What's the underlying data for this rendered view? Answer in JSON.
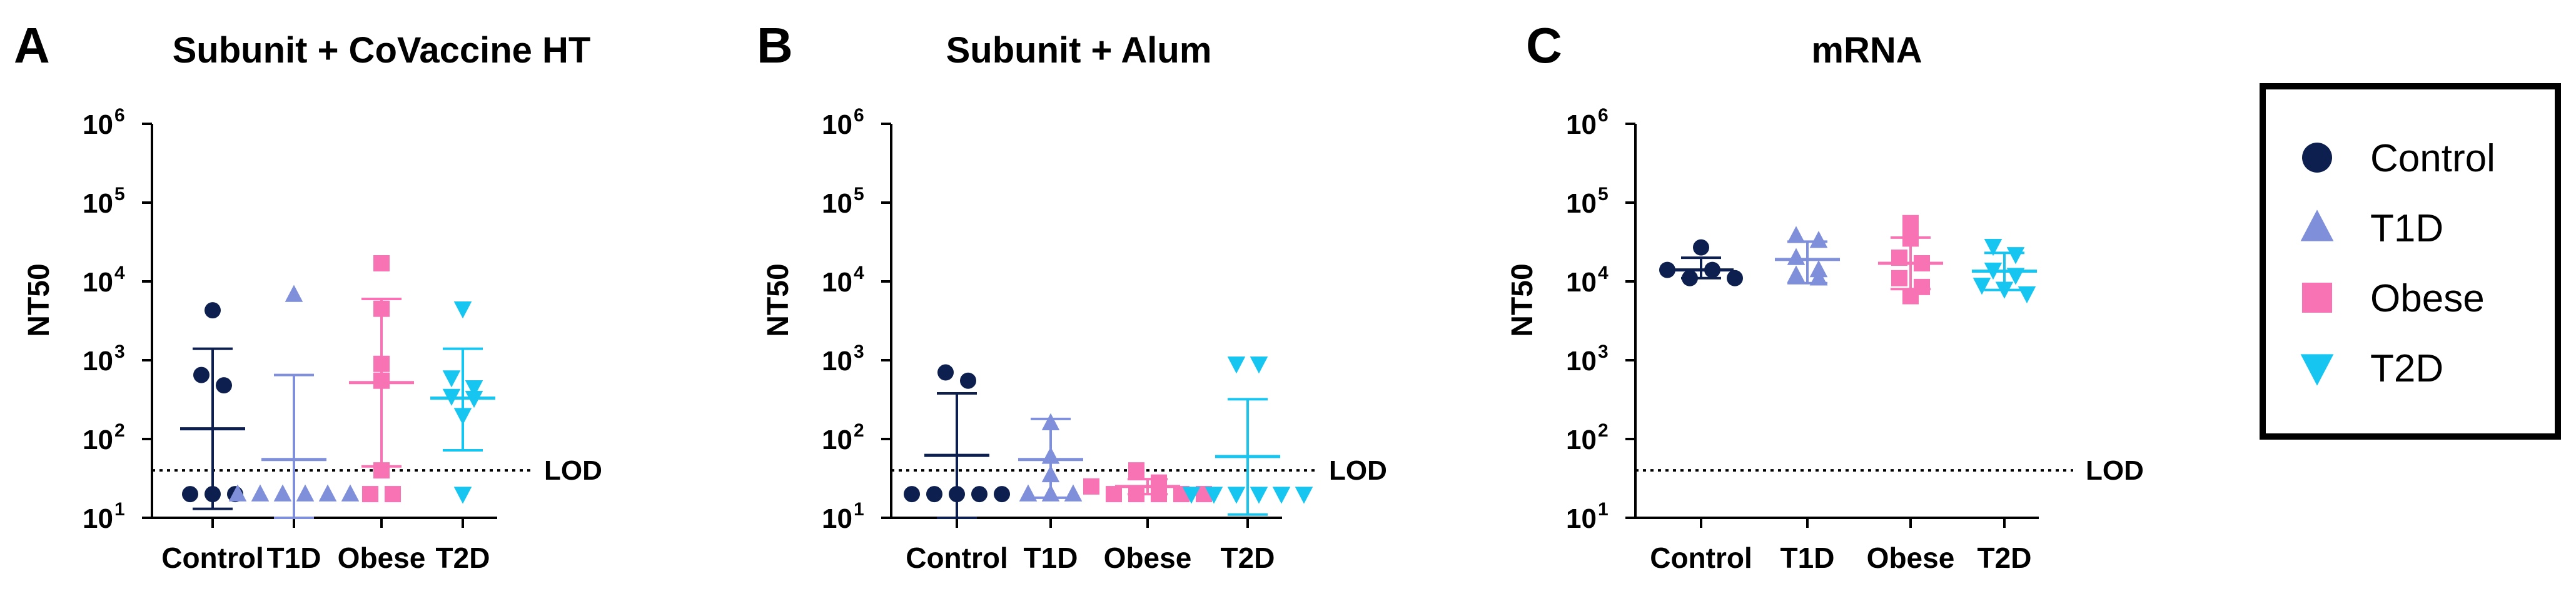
{
  "chart_data": [
    {
      "panel_letter": "A",
      "type": "scatter",
      "title": "Subunit + CoVaccine HT",
      "ylabel": "NT50",
      "yscale": "log",
      "ylim": [
        10,
        1000000
      ],
      "yticks": [
        1,
        2,
        3,
        4,
        5,
        6
      ],
      "categories": [
        "Control",
        "T1D",
        "Obese",
        "T2D"
      ],
      "lod": {
        "value": 40,
        "label": "LOD"
      },
      "series": [
        {
          "name": "Control",
          "points": [
            4300,
            650,
            480,
            20,
            20,
            20
          ],
          "mean": 135,
          "err_low": 13,
          "err_high": 1400
        },
        {
          "name": "T1D",
          "points": [
            6800,
            20,
            20,
            20,
            20,
            20,
            20
          ],
          "mean": 55,
          "err_low": 10,
          "err_high": 650
        },
        {
          "name": "Obese",
          "points": [
            17000,
            4500,
            900,
            550,
            20,
            20,
            40
          ],
          "mean": 520,
          "err_low": 45,
          "err_high": 6000
        },
        {
          "name": "T2D",
          "points": [
            4500,
            600,
            450,
            350,
            330,
            200,
            20
          ],
          "mean": 330,
          "err_low": 72,
          "err_high": 1400
        }
      ]
    },
    {
      "panel_letter": "B",
      "type": "scatter",
      "title": "Subunit + Alum",
      "ylabel": "NT50",
      "yscale": "log",
      "ylim": [
        10,
        1000000
      ],
      "yticks": [
        1,
        2,
        3,
        4,
        5,
        6
      ],
      "categories": [
        "Control",
        "T1D",
        "Obese",
        "T2D"
      ],
      "lod": {
        "value": 40,
        "label": "LOD"
      },
      "series": [
        {
          "name": "Control",
          "points": [
            700,
            550,
            20,
            20,
            20,
            20,
            20
          ],
          "mean": 62,
          "err_low": 10,
          "err_high": 380
        },
        {
          "name": "T1D",
          "points": [
            160,
            60,
            35,
            20,
            20,
            20
          ],
          "mean": 55,
          "err_low": 18,
          "err_high": 180
        },
        {
          "name": "Obese",
          "points": [
            40,
            28,
            25,
            20,
            20,
            20,
            20,
            20
          ],
          "mean": 25,
          "err_low": 20,
          "err_high": 31
        },
        {
          "name": "T2D",
          "points": [
            900,
            900,
            20,
            20,
            20,
            20,
            20,
            20
          ],
          "mean": 60,
          "err_low": 11,
          "err_high": 320
        }
      ]
    },
    {
      "panel_letter": "C",
      "type": "scatter",
      "title": "mRNA",
      "ylabel": "NT50",
      "yscale": "log",
      "ylim": [
        10,
        1000000
      ],
      "yticks": [
        1,
        2,
        3,
        4,
        5,
        6
      ],
      "categories": [
        "Control",
        "T1D",
        "Obese",
        "T2D"
      ],
      "lod": {
        "value": 40,
        "label": "LOD"
      },
      "series": [
        {
          "name": "Control",
          "points": [
            27000,
            14000,
            11000,
            14000,
            11000
          ],
          "mean": 14000,
          "err_low": 11000,
          "err_high": 20000
        },
        {
          "name": "T1D",
          "points": [
            38000,
            33000,
            20000,
            14000,
            12000,
            11000
          ],
          "mean": 19000,
          "err_low": 9500,
          "err_high": 32000
        },
        {
          "name": "Obese",
          "points": [
            55000,
            35000,
            20000,
            17000,
            11000,
            8500,
            6500
          ],
          "mean": 17000,
          "err_low": 8000,
          "err_high": 36000
        },
        {
          "name": "T2D",
          "points": [
            28000,
            22000,
            14000,
            12000,
            9000,
            8000,
            7000
          ],
          "mean": 13500,
          "err_low": 7800,
          "err_high": 23000
        }
      ]
    }
  ],
  "legend": {
    "entries": [
      {
        "label": "Control",
        "shape": "circle",
        "color": "#0d1f4f"
      },
      {
        "label": "T1D",
        "shape": "triangle-up",
        "color": "#7f8fda"
      },
      {
        "label": "Obese",
        "shape": "square",
        "color": "#f873b4"
      },
      {
        "label": "T2D",
        "shape": "triangle-down",
        "color": "#17c6f0"
      }
    ]
  },
  "tick_base": "10",
  "colors": {
    "Control": "#0d1f4f",
    "T1D": "#7f8fda",
    "Obese": "#f873b4",
    "T2D": "#17c6f0"
  }
}
